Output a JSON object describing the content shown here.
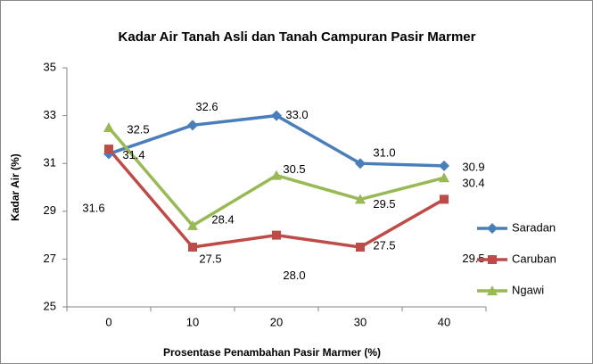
{
  "chart_data": {
    "type": "line",
    "title": "Kadar Air Tanah Asli dan Tanah Campuran Pasir Marmer",
    "x_label": "Prosentase Penambahan  Pasir Marmer (%)",
    "y_label": "Kadar Air (%)",
    "categories": [
      "0",
      "10",
      "20",
      "30",
      "40"
    ],
    "series": [
      {
        "name": "Saradan",
        "color": "#4a7ebb",
        "marker": "diamond",
        "values": [
          31.4,
          32.6,
          33.0,
          31.0,
          30.9
        ],
        "value_labels": [
          "31.4",
          "32.6",
          "33.0",
          "31.0",
          "30.9"
        ]
      },
      {
        "name": "Caruban",
        "color": "#be4b48",
        "marker": "square",
        "values": [
          31.6,
          27.5,
          28.0,
          27.5,
          29.5
        ],
        "value_labels": [
          "31.6",
          "27.5",
          "28.0",
          "27.5",
          "29.5"
        ]
      },
      {
        "name": "Ngawi",
        "color": "#98b954",
        "marker": "triangle",
        "values": [
          32.5,
          28.4,
          30.5,
          29.5,
          30.4
        ],
        "value_labels": [
          "32.5",
          "28.4",
          "30.5",
          "29.5",
          "30.4"
        ]
      }
    ],
    "ylim": [
      25,
      35
    ],
    "yticks": [
      25,
      27,
      29,
      31,
      33,
      35
    ],
    "grid": false,
    "legend": "right"
  }
}
